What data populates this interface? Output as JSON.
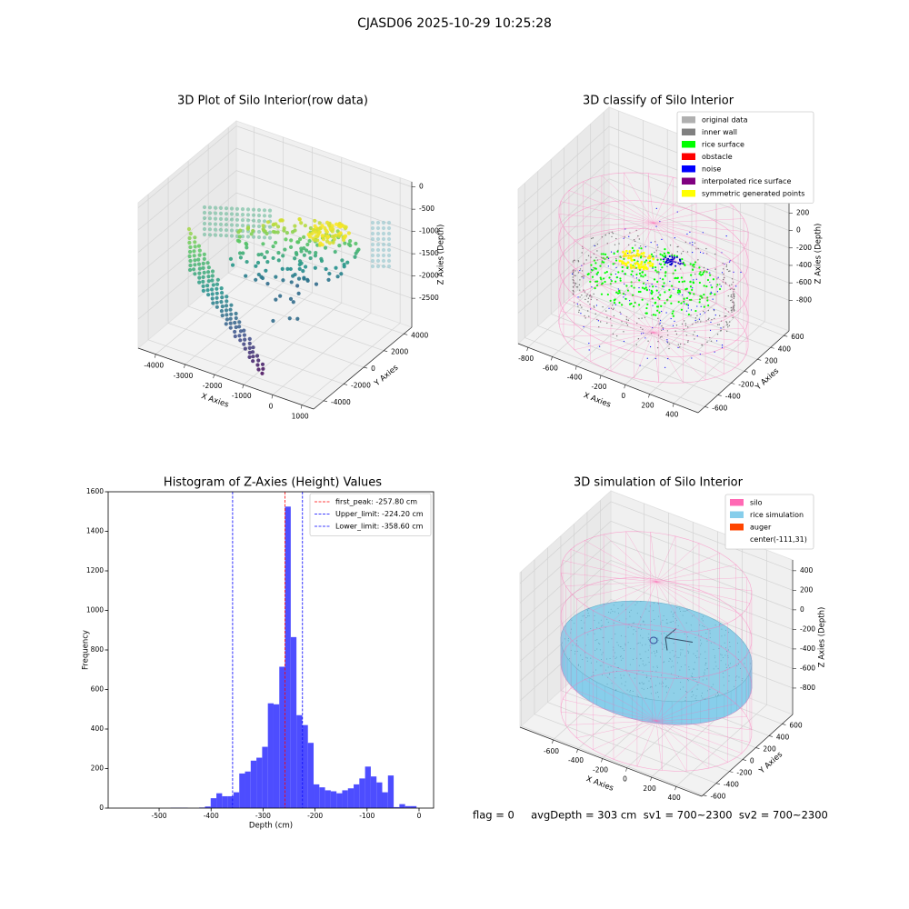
{
  "title": "CJASD06 2025-10-29 10:25:28",
  "footer": "flag = 0     avgDepth = 303 cm  sv1 = 700~2300  sv2 = 700~2300",
  "chart_data": [
    {
      "type": "scatter3d",
      "title": "3D Plot of Silo Interior(row data)",
      "xlabel": "X Axies",
      "ylabel": "Y Axies",
      "zlabel": "Z Axies (Depth)",
      "xlim": [
        -4600,
        1400
      ],
      "ylim": [
        -5000,
        4800
      ],
      "zlim": [
        -3150,
        115
      ],
      "xticks": [
        -4000,
        -3000,
        -2000,
        -1000,
        0,
        1000
      ],
      "yticks": [
        -4000,
        -2000,
        0,
        2000,
        4000
      ],
      "zticks": [
        0,
        -500,
        -1000,
        -1500,
        -2000,
        -2500
      ],
      "grid": true,
      "colormap": "viridis"
    },
    {
      "type": "scatter3d",
      "title": "3D classify of Silo Interior",
      "xlabel": "X Axies",
      "ylabel": "Y Axies",
      "zlabel": "Z Axies (Depth)",
      "xlim": [
        -880,
        600
      ],
      "ylim": [
        -700,
        680
      ],
      "zlim": [
        -1150,
        620
      ],
      "xticks": [
        -800,
        -600,
        -400,
        -200,
        0,
        200,
        400
      ],
      "yticks": [
        -600,
        -400,
        -200,
        0,
        200,
        400,
        600
      ],
      "zticks": [
        -800,
        -600,
        -400,
        -200,
        0,
        200,
        400
      ],
      "grid": true,
      "legend": {
        "loc": "upper right",
        "entries": [
          {
            "name": "original data",
            "color": "#b0b0b0"
          },
          {
            "name": "inner wall",
            "color": "#808080"
          },
          {
            "name": "rice surface",
            "color": "#00ff00"
          },
          {
            "name": "obstacle",
            "color": "#ff0000"
          },
          {
            "name": "noise",
            "color": "#0000ff"
          },
          {
            "name": "interpolated rice surface",
            "color": "#800080"
          },
          {
            "name": "symmetric generated points",
            "color": "#ffff00"
          }
        ]
      }
    },
    {
      "type": "histogram",
      "title": "Histogram of Z-Axies (Height) Values",
      "xlabel": "Depth (cm)",
      "ylabel": "Frequency",
      "color": "#4d4dff",
      "bins": [
        -477.8,
        -466.8,
        -455.8,
        -444.8,
        -433.8,
        -422.8,
        -411.8,
        -400.8,
        -389.8,
        -378.8,
        -367.8,
        -356.8,
        -345.8,
        -334.8,
        -323.8,
        -312.8,
        -301.8,
        -290.8,
        -279.8,
        -268.8,
        -257.8,
        -246.8,
        -235.8,
        -224.8,
        -213.8,
        -202.8,
        -191.8,
        -180.8,
        -169.8,
        -158.8,
        -147.8,
        -136.8,
        -125.8,
        -114.8,
        -103.8,
        -92.8,
        -81.8,
        -70.8,
        -59.8,
        -48.8,
        -37.8,
        -26.8,
        -15.8,
        -4.8
      ],
      "counts": [
        2,
        2,
        2,
        0,
        0,
        3,
        8,
        50,
        75,
        60,
        60,
        80,
        175,
        185,
        240,
        255,
        310,
        530,
        525,
        715,
        1525,
        865,
        470,
        420,
        330,
        120,
        105,
        90,
        85,
        75,
        90,
        100,
        120,
        150,
        210,
        160,
        130,
        80,
        165,
        5,
        20,
        10,
        10
      ],
      "xlim": [
        -598,
        28
      ],
      "ylim": [
        0,
        1600
      ],
      "xticks": [
        -500,
        -400,
        -300,
        -200,
        -100,
        0
      ],
      "yticks": [
        0,
        200,
        400,
        600,
        800,
        1000,
        1200,
        1400,
        1600
      ],
      "vlines": [
        {
          "name": "first_peak: -257.80 cm",
          "value": -257.8,
          "color": "#ff0000"
        },
        {
          "name": "Upper_limit: -224.20 cm",
          "value": -224.2,
          "color": "#0000ff"
        },
        {
          "name": "Lower_limit: -358.60 cm",
          "value": -358.6,
          "color": "#0000ff"
        }
      ],
      "legend": "upper right"
    },
    {
      "type": "scatter3d",
      "title": "3D simulation of Silo Interior",
      "xlabel": "X Axies",
      "ylabel": "Y Axies",
      "zlabel": "Z Axies (Depth)",
      "xlim": [
        -870,
        610
      ],
      "ylim": [
        -620,
        760
      ],
      "zlim": [
        -1070,
        510
      ],
      "xticks": [
        -600,
        -400,
        -200,
        0,
        200,
        400
      ],
      "yticks": [
        -600,
        -400,
        -200,
        0,
        200,
        400,
        600
      ],
      "zticks": [
        -800,
        -600,
        -400,
        -200,
        0,
        200,
        400
      ],
      "grid": true,
      "legend": {
        "loc": "upper right",
        "entries": [
          {
            "name": "silo",
            "color": "#ff69b4"
          },
          {
            "name": "rice simulation",
            "color": "#87ceeb"
          },
          {
            "name": "auger",
            "color": "#ff4500"
          },
          {
            "name": "center(-111,31)"
          }
        ]
      }
    }
  ]
}
